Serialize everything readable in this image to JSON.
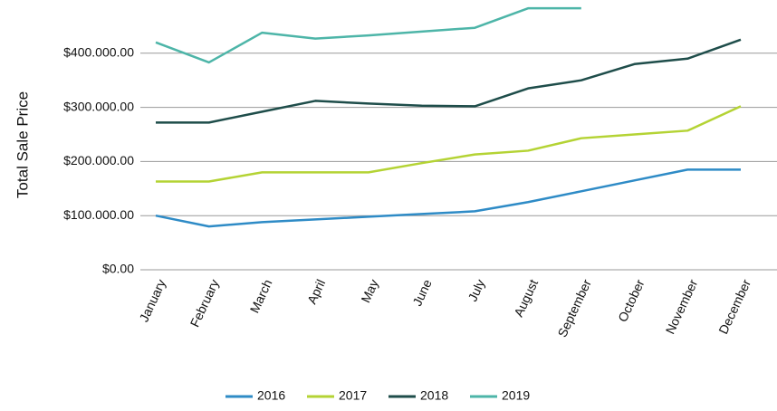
{
  "chart_data": {
    "type": "line",
    "y_label": "Total Sale Price",
    "categories": [
      "January",
      "February",
      "March",
      "April",
      "May",
      "June",
      "July",
      "August",
      "September",
      "October",
      "November",
      "December"
    ],
    "series": [
      {
        "name": "2016",
        "color": "#2e8bc6",
        "values": [
          100000,
          80000,
          88000,
          93000,
          98000,
          103000,
          108000,
          125000,
          145000,
          165000,
          185000,
          185000
        ]
      },
      {
        "name": "2017",
        "color": "#b4d334",
        "values": [
          163000,
          163000,
          180000,
          180000,
          180000,
          197000,
          213000,
          220000,
          243000,
          250000,
          257000,
          302000
        ]
      },
      {
        "name": "2018",
        "color": "#1e4d4a",
        "values": [
          272000,
          272000,
          292000,
          312000,
          307000,
          303000,
          302000,
          335000,
          350000,
          380000,
          390000,
          425000
        ]
      },
      {
        "name": "2019",
        "color": "#4db5a8",
        "values": [
          420000,
          383000,
          438000,
          427000,
          433000,
          440000,
          447000,
          483000,
          483000,
          null,
          null,
          null
        ]
      }
    ],
    "ylim": [
      0,
      500000
    ],
    "yticks": [
      {
        "value": 0,
        "label": "$0.00"
      },
      {
        "value": 100000,
        "label": "$100.000.00"
      },
      {
        "value": 200000,
        "label": "$200.000.00"
      },
      {
        "value": 300000,
        "label": "$300.000.00"
      },
      {
        "value": 400000,
        "label": "$400.000.00"
      }
    ],
    "grid": true,
    "legend": "bottom"
  }
}
